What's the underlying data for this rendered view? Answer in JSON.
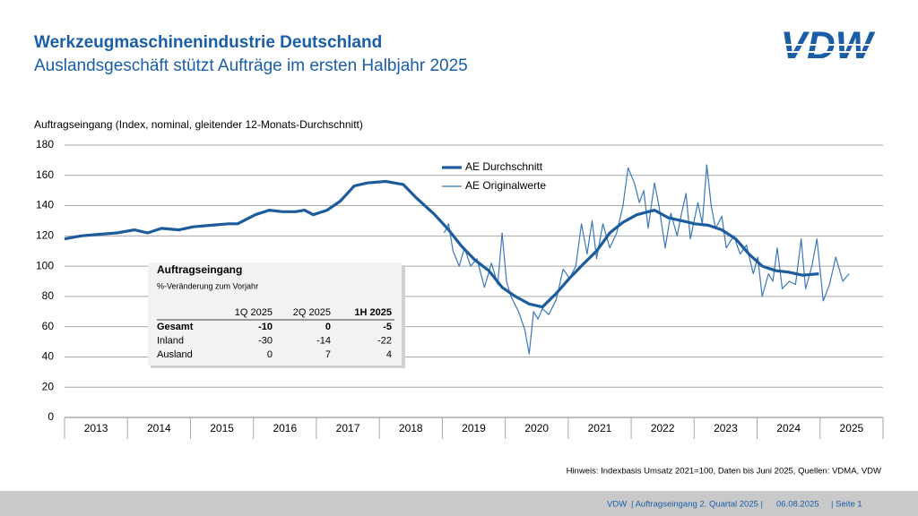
{
  "logo": "VDW",
  "chart_data": {
    "type": "line",
    "title": "Werkzeugmaschinenindustrie Deutschland",
    "subtitle": "Auslandsgeschäft stützt Aufträge im ersten Halbjahr 2025",
    "y_axis_label": "Auftragseingang (Index, nominal, gleitender 12-Monats-Durchschnitt)",
    "categories": [
      "2013",
      "2014",
      "2015",
      "2016",
      "2017",
      "2018",
      "2019",
      "2020",
      "2021",
      "2022",
      "2023",
      "2024",
      "2025"
    ],
    "xlim": [
      2013,
      2026
    ],
    "xticks": [
      2013,
      2014,
      2015,
      2016,
      2017,
      2018,
      2019,
      2020,
      2021,
      2022,
      2023,
      2024,
      2025,
      2026
    ],
    "ylim": [
      0,
      180
    ],
    "yticks": [
      0,
      20,
      40,
      60,
      80,
      100,
      120,
      140,
      160,
      180
    ],
    "grid": true,
    "legend": "top",
    "series": [
      {
        "name": "AE Durchschnitt",
        "color": "#1c5c9c",
        "width": 3.2,
        "x": [
          2013.0,
          2013.26,
          2013.54,
          2013.83,
          2014.11,
          2014.32,
          2014.54,
          2014.82,
          2015.04,
          2015.32,
          2015.61,
          2015.75,
          2016.03,
          2016.25,
          2016.46,
          2016.67,
          2016.81,
          2016.95,
          2017.17,
          2017.38,
          2017.6,
          2017.81,
          2018.1,
          2018.38,
          2018.59,
          2018.88,
          2019.1,
          2019.31,
          2019.52,
          2019.74,
          2019.95,
          2020.16,
          2020.38,
          2020.59,
          2020.81,
          2021.02,
          2021.23,
          2021.45,
          2021.66,
          2021.87,
          2022.09,
          2022.37,
          2022.59,
          2022.8,
          2023.01,
          2023.23,
          2023.44,
          2023.66,
          2023.87,
          2024.08,
          2024.3,
          2024.51,
          2024.72,
          2024.98
        ],
        "values": [
          118,
          120,
          121,
          122,
          124,
          122,
          125,
          124,
          126,
          127,
          128,
          128,
          134,
          137,
          136,
          136,
          137,
          134,
          137,
          143,
          153,
          155,
          156,
          154,
          145,
          134,
          124,
          113,
          104,
          97,
          86,
          80,
          75,
          73,
          82,
          92,
          101,
          110,
          122,
          129,
          134,
          137,
          132,
          130,
          128,
          127,
          124,
          118,
          108,
          100,
          97,
          96,
          94,
          95
        ]
      },
      {
        "name": "AE Originalwerte",
        "color": "#3a78b8",
        "width": 1.2,
        "x": [
          2019.03,
          2019.1,
          2019.17,
          2019.27,
          2019.35,
          2019.45,
          2019.55,
          2019.67,
          2019.78,
          2019.88,
          2019.95,
          2020.02,
          2020.09,
          2020.21,
          2020.31,
          2020.38,
          2020.45,
          2020.52,
          2020.59,
          2020.69,
          2020.81,
          2020.92,
          2021.02,
          2021.12,
          2021.21,
          2021.3,
          2021.38,
          2021.45,
          2021.55,
          2021.66,
          2021.77,
          2021.87,
          2021.95,
          2022.05,
          2022.13,
          2022.2,
          2022.27,
          2022.37,
          2022.44,
          2022.54,
          2022.63,
          2022.73,
          2022.8,
          2022.87,
          2022.94,
          2023.06,
          2023.13,
          2023.2,
          2023.27,
          2023.34,
          2023.44,
          2023.51,
          2023.63,
          2023.73,
          2023.83,
          2023.94,
          2024.01,
          2024.08,
          2024.18,
          2024.25,
          2024.32,
          2024.4,
          2024.51,
          2024.61,
          2024.7,
          2024.77,
          2024.87,
          2024.95,
          2025.05,
          2025.15,
          2025.25,
          2025.36,
          2025.46
        ],
        "values": [
          122,
          128,
          110,
          100,
          112,
          100,
          105,
          86,
          102,
          88,
          122,
          90,
          80,
          70,
          58,
          42,
          70,
          65,
          72,
          68,
          78,
          98,
          92,
          100,
          128,
          108,
          130,
          105,
          128,
          112,
          122,
          140,
          165,
          155,
          142,
          150,
          125,
          155,
          140,
          112,
          135,
          120,
          135,
          148,
          118,
          142,
          128,
          167,
          140,
          125,
          133,
          112,
          120,
          108,
          114,
          95,
          106,
          80,
          95,
          90,
          112,
          85,
          90,
          88,
          118,
          85,
          100,
          118,
          77,
          88,
          106,
          90,
          95
        ]
      }
    ],
    "table": {
      "title": "Auftragseingang",
      "subtitle": "%-Veränderung zum Vorjahr",
      "columns": [
        "1Q 2025",
        "2Q 2025",
        "1H 2025"
      ],
      "rows": [
        {
          "label": "Gesamt",
          "values": [
            -10,
            0,
            -5
          ]
        },
        {
          "label": "Inland",
          "values": [
            -30,
            -14,
            -22
          ]
        },
        {
          "label": "Ausland",
          "values": [
            0,
            7,
            4
          ]
        }
      ]
    },
    "note": "Hinweis: Indexbasis Umsatz 2021=100, Daten bis Juni 2025, Quellen: VDMA, VDW"
  },
  "footer": [
    "VDW",
    "| Auftragseingang 2. Quartal 2025 |",
    "06.08.2025",
    "| Seite  1"
  ]
}
